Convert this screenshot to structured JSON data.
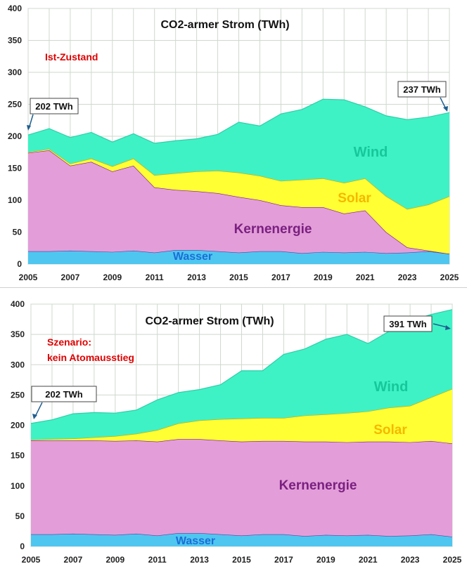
{
  "colors": {
    "wasser": "#4fc6f0",
    "kernenergie": "#e39ed9",
    "solar": "#ffff33",
    "wind": "#3ef2c6",
    "wasser_label": "#1a6fd6",
    "kern_label": "#7a2080",
    "solar_label": "#f5b800",
    "wind_label": "#16c79a",
    "note": "#e00000",
    "arrow": "#1f5f8f"
  },
  "chart_data": [
    {
      "type": "area",
      "stacked": true,
      "title": "CO2-armer Strom (TWh)",
      "note": "Ist-Zustand",
      "x": [
        2005,
        2006,
        2007,
        2008,
        2009,
        2010,
        2011,
        2012,
        2013,
        2014,
        2015,
        2016,
        2017,
        2018,
        2019,
        2020,
        2021,
        2022,
        2023,
        2024,
        2025
      ],
      "x_ticks": [
        "2005",
        "2007",
        "2009",
        "2011",
        "2013",
        "2015",
        "2017",
        "2019",
        "2021",
        "2023",
        "2025"
      ],
      "ylim": [
        0,
        400
      ],
      "y_ticks": [
        "0",
        "50",
        "100",
        "150",
        "200",
        "250",
        "300",
        "350",
        "400"
      ],
      "series": [
        {
          "name": "Wasser",
          "values": [
            20,
            20,
            21,
            20,
            19,
            21,
            18,
            22,
            22,
            20,
            18,
            20,
            20,
            17,
            19,
            18,
            19,
            17,
            18,
            20,
            16
          ]
        },
        {
          "name": "Kernenergie",
          "values": [
            154,
            158,
            133,
            140,
            126,
            133,
            102,
            94,
            92,
            91,
            87,
            80,
            72,
            72,
            70,
            61,
            65,
            33,
            8,
            1,
            0
          ]
        },
        {
          "name": "Solar",
          "values": [
            1,
            2,
            3,
            5,
            8,
            11,
            19,
            26,
            31,
            35,
            38,
            38,
            38,
            43,
            45,
            48,
            50,
            56,
            60,
            72,
            90
          ]
        },
        {
          "name": "Wind",
          "values": [
            27,
            32,
            41,
            41,
            38,
            39,
            50,
            51,
            51,
            57,
            79,
            78,
            105,
            110,
            124,
            130,
            112,
            126,
            140,
            137,
            131
          ]
        }
      ],
      "annotations": [
        {
          "text": "202 TWh",
          "x": 2005,
          "y": 202
        },
        {
          "text": "237 TWh",
          "x": 2025,
          "y": 237
        }
      ]
    },
    {
      "type": "area",
      "stacked": true,
      "title": "CO2-armer Strom (TWh)",
      "note": "Szenario:",
      "note2": "kein  Atomausstieg",
      "x": [
        2005,
        2006,
        2007,
        2008,
        2009,
        2010,
        2011,
        2012,
        2013,
        2014,
        2015,
        2016,
        2017,
        2018,
        2019,
        2020,
        2021,
        2022,
        2023,
        2024,
        2025
      ],
      "x_ticks": [
        "2005",
        "2007",
        "2009",
        "2011",
        "2013",
        "2015",
        "2017",
        "2019",
        "2021",
        "2023",
        "2025"
      ],
      "ylim": [
        0,
        400
      ],
      "y_ticks": [
        "0",
        "50",
        "100",
        "150",
        "200",
        "250",
        "300",
        "350",
        "400"
      ],
      "series": [
        {
          "name": "Wasser",
          "values": [
            20,
            20,
            21,
            20,
            19,
            21,
            18,
            22,
            22,
            20,
            18,
            20,
            20,
            17,
            19,
            18,
            19,
            17,
            18,
            20,
            16
          ]
        },
        {
          "name": "Kernenergie",
          "values": [
            155,
            155,
            154,
            155,
            155,
            154,
            155,
            155,
            155,
            155,
            155,
            154,
            154,
            156,
            154,
            154,
            154,
            156,
            154,
            154,
            154
          ]
        },
        {
          "name": "Solar",
          "values": [
            1,
            2,
            3,
            5,
            8,
            11,
            19,
            26,
            31,
            35,
            38,
            38,
            38,
            43,
            45,
            48,
            50,
            56,
            60,
            72,
            90
          ]
        },
        {
          "name": "Wind",
          "values": [
            27,
            32,
            41,
            41,
            38,
            39,
            50,
            51,
            51,
            57,
            79,
            78,
            105,
            110,
            124,
            130,
            112,
            126,
            140,
            137,
            131
          ]
        }
      ],
      "annotations": [
        {
          "text": "202 TWh",
          "x": 2005,
          "y": 202
        },
        {
          "text": "391 TWh",
          "x": 2025,
          "y": 391
        }
      ]
    }
  ]
}
